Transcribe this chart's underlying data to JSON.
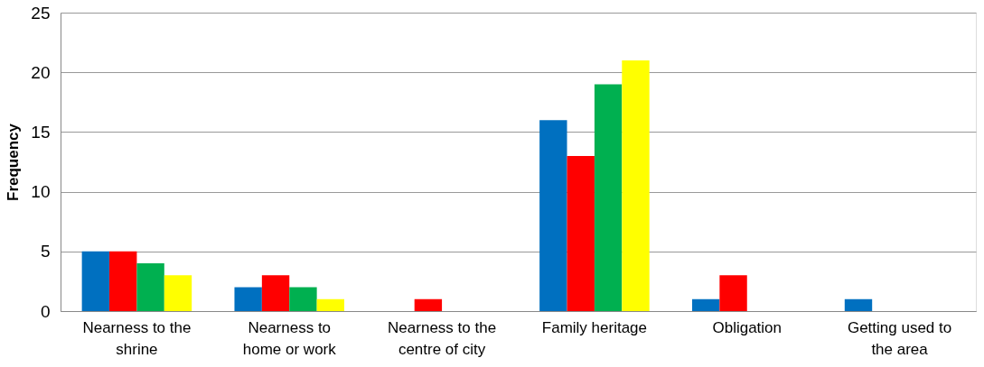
{
  "chart_data": {
    "type": "bar",
    "ylabel": "Frequency",
    "categories": [
      "Nearness to the shrine",
      "Nearness to home or work",
      "Nearness to the centre of city",
      "Family heritage",
      "Obligation",
      "Getting used to the area"
    ],
    "series": [
      {
        "color": "#0070c0",
        "values": [
          5,
          2,
          0,
          16,
          1,
          1
        ]
      },
      {
        "color": "#ff0000",
        "values": [
          5,
          3,
          1,
          13,
          3,
          0
        ]
      },
      {
        "color": "#00b050",
        "values": [
          4,
          2,
          0,
          19,
          0,
          0
        ]
      },
      {
        "color": "#ffff00",
        "values": [
          3,
          1,
          0,
          21,
          0,
          0
        ]
      }
    ],
    "ylim": [
      0,
      25
    ],
    "yticks": [
      0,
      5,
      10,
      15,
      20,
      25
    ],
    "grid": "y",
    "legend": false
  }
}
